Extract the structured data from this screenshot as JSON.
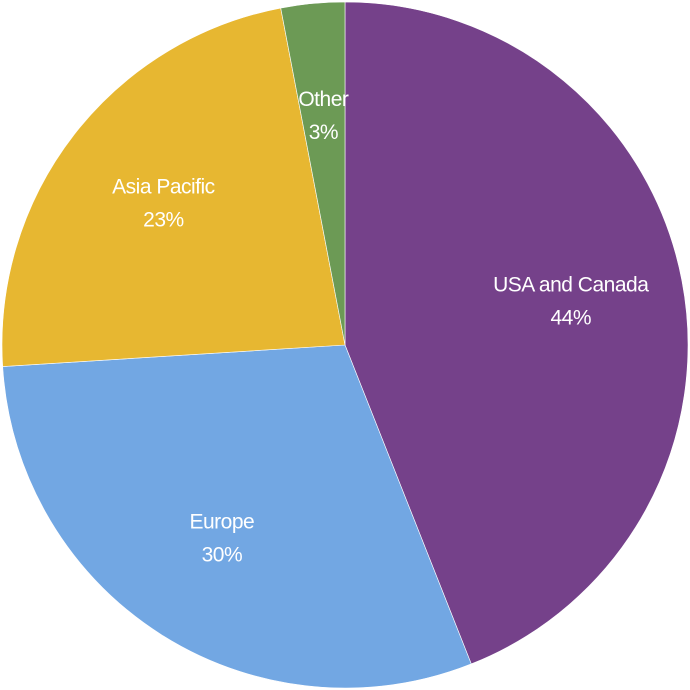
{
  "chart_data": {
    "type": "pie",
    "categories": [
      "USA and Canada",
      "Europe",
      "Asia Pacific",
      "Other"
    ],
    "values": [
      44,
      30,
      23,
      3
    ],
    "value_labels": [
      "44%",
      "30%",
      "23%",
      "3%"
    ],
    "colors": [
      "#75418a",
      "#72a7e3",
      "#e7b731",
      "#6c9a55"
    ]
  }
}
